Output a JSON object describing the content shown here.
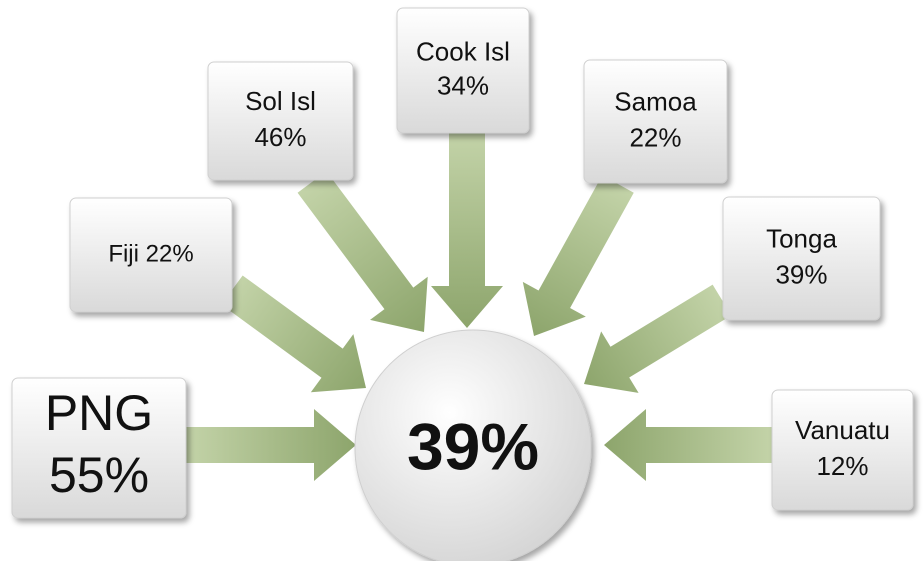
{
  "center": {
    "label": "39%"
  },
  "nodes": [
    {
      "lines": [
        "PNG",
        "55%"
      ]
    },
    {
      "lines": [
        "Fiji 22%"
      ]
    },
    {
      "lines": [
        "Sol Isl",
        "46%"
      ]
    },
    {
      "lines": [
        "Cook Isl",
        "34%"
      ]
    },
    {
      "lines": [
        "Samoa",
        "22%"
      ]
    },
    {
      "lines": [
        "Tonga",
        "39%"
      ]
    },
    {
      "lines": [
        "Vanuatu",
        "12%"
      ]
    }
  ]
}
